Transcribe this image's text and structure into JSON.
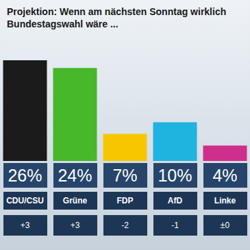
{
  "chart_data": {
    "type": "bar",
    "title": "Projektion: Wenn am nächsten Sonntag wirklich Bundestagswahl wäre ...",
    "categories": [
      "CDU/CSU",
      "Grüne",
      "FDP",
      "AfD",
      "Linke"
    ],
    "values": [
      26,
      24,
      7,
      10,
      4
    ],
    "value_labels": [
      "26%",
      "24%",
      "7%",
      "10%",
      "4%"
    ],
    "changes": [
      3,
      3,
      -2,
      -1,
      0
    ],
    "change_labels": [
      "+3",
      "+3",
      "-2",
      "-1",
      "±0"
    ],
    "colors": [
      "#1b1b1b",
      "#46b82a",
      "#f6c700",
      "#1fb3e0",
      "#cf2f8c"
    ],
    "ylim": [
      0,
      26
    ],
    "yticks": [
      0,
      26
    ],
    "data_labels": true,
    "tick_labels": false,
    "grid": false
  }
}
